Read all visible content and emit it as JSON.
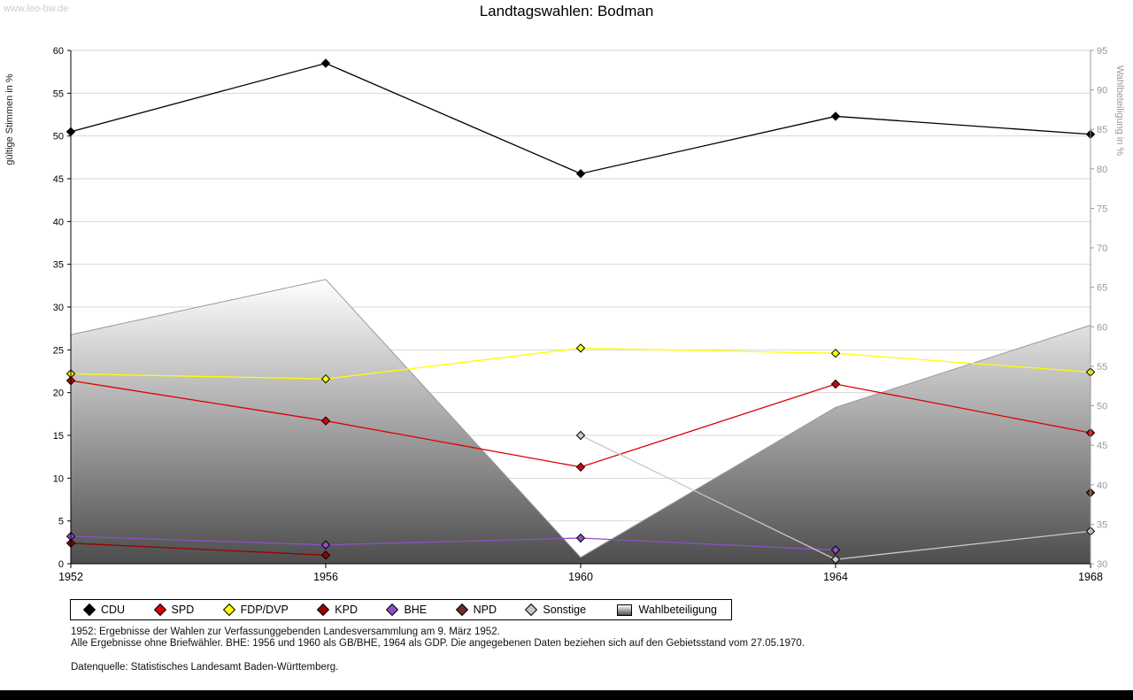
{
  "watermark": "www.leo-bw.de",
  "title": "Landtagswahlen: Bodman",
  "chart_data": {
    "type": "line",
    "x": [
      1952,
      1956,
      1960,
      1964,
      1968
    ],
    "left_axis": {
      "label": "gültige Stimmen in %",
      "min": 0,
      "max": 60,
      "step": 5
    },
    "right_axis": {
      "label": "Wahlbeteiligung in %",
      "min": 30,
      "max": 95,
      "step": 5
    },
    "grid": true,
    "legend_position": "bottom",
    "series": [
      {
        "name": "CDU",
        "color": "#000000",
        "values": [
          50.5,
          58.5,
          45.6,
          52.3,
          50.2
        ]
      },
      {
        "name": "SPD",
        "color": "#dd0000",
        "values": [
          21.4,
          16.7,
          11.3,
          21.0,
          15.3
        ]
      },
      {
        "name": "FDP/DVP",
        "color": "#ffff00",
        "values": [
          22.2,
          21.6,
          25.2,
          24.6,
          22.4
        ]
      },
      {
        "name": "KPD",
        "color": "#990000",
        "values": [
          2.4,
          1.0,
          null,
          null,
          null
        ]
      },
      {
        "name": "BHE",
        "color": "#8c51c6",
        "values": [
          3.2,
          2.2,
          3.0,
          1.6,
          null
        ]
      },
      {
        "name": "NPD",
        "color": "#663322",
        "values": [
          null,
          null,
          null,
          null,
          8.3
        ]
      },
      {
        "name": "Sonstige",
        "color": "#c8c8c8",
        "values": [
          null,
          null,
          15.0,
          0.5,
          3.8
        ]
      }
    ],
    "area_series": {
      "name": "Wahlbeteiligung",
      "axis": "right",
      "values": [
        59.0,
        66.0,
        30.8,
        49.8,
        60.2
      ],
      "fill_top": "#ffffff",
      "fill_bottom": "#4d4d4d",
      "stroke": "#999999"
    }
  },
  "notes": {
    "line1": "1952: Ergebnisse der Wahlen zur Verfassunggebenden Landesversammlung am 9. März 1952.",
    "line2": "Alle Ergebnisse ohne Briefwähler. BHE: 1956 und 1960 als GB/BHE, 1964 als GDP. Die angegebenen Daten beziehen sich auf den Gebietsstand vom 27.05.1970.",
    "source": "Datenquelle: Statistisches Landesamt Baden-Württemberg."
  }
}
